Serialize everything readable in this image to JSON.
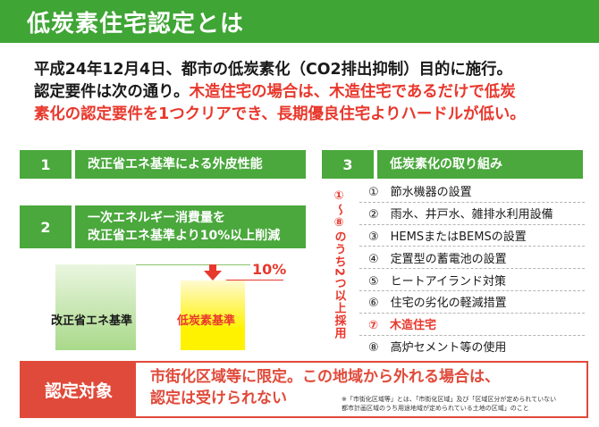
{
  "header": {
    "title": "低炭素住宅認定とは"
  },
  "intro": {
    "line1": "平成24年12月4日、都市の低炭素化（CO2排出抑制）目的に施行。",
    "line2_plain": "認定要件は次の通り。",
    "line2_red": "木造住宅の場合は、木造住宅であるだけで低炭",
    "line3_red": "素化の認定要件を1つクリアでき、長期優良住宅よりハードルが低い。"
  },
  "section1": {
    "num": "1",
    "label": "改正省エネ基準による外皮性能"
  },
  "section2": {
    "num": "2",
    "label_line1": "一次エネルギー消費量を",
    "label_line2": "改正省エネ基準より10%以上削減",
    "chart": {
      "bar1_label": "改正省エネ基準",
      "bar2_label": "低炭素基準",
      "reduction_label": "10%"
    }
  },
  "section3": {
    "num": "3",
    "label": "低炭素化の取り組み",
    "side_note": "①～⑧のうち2つ以上採用",
    "items": [
      "①　節水機器の設置",
      "②　雨水、井戸水、雑排水利用設備",
      "③　HEMSまたはBEMSの設置",
      "④　定置型の蓄電池の設置",
      "⑤　ヒートアイランド対策",
      "⑥　住宅の劣化の軽減措置",
      "⑦　木造住宅",
      "⑧　高炉セメント等の使用"
    ]
  },
  "target": {
    "label": "認定対象",
    "line1": "市街化区域等に限定。この地域から外れる場合は、",
    "line2": "認定は受けられない",
    "note_line1": "※「市街化区域等」とは、「市街化区域」及び「区域区分が定められていない",
    "note_line2": "都市計画区域のうち用途地域が定められている土地の区域」のこと"
  },
  "colors": {
    "green": "#4aa83c",
    "header_green": "#3fa535",
    "red": "#e8382d",
    "yellow": "#fff200"
  }
}
